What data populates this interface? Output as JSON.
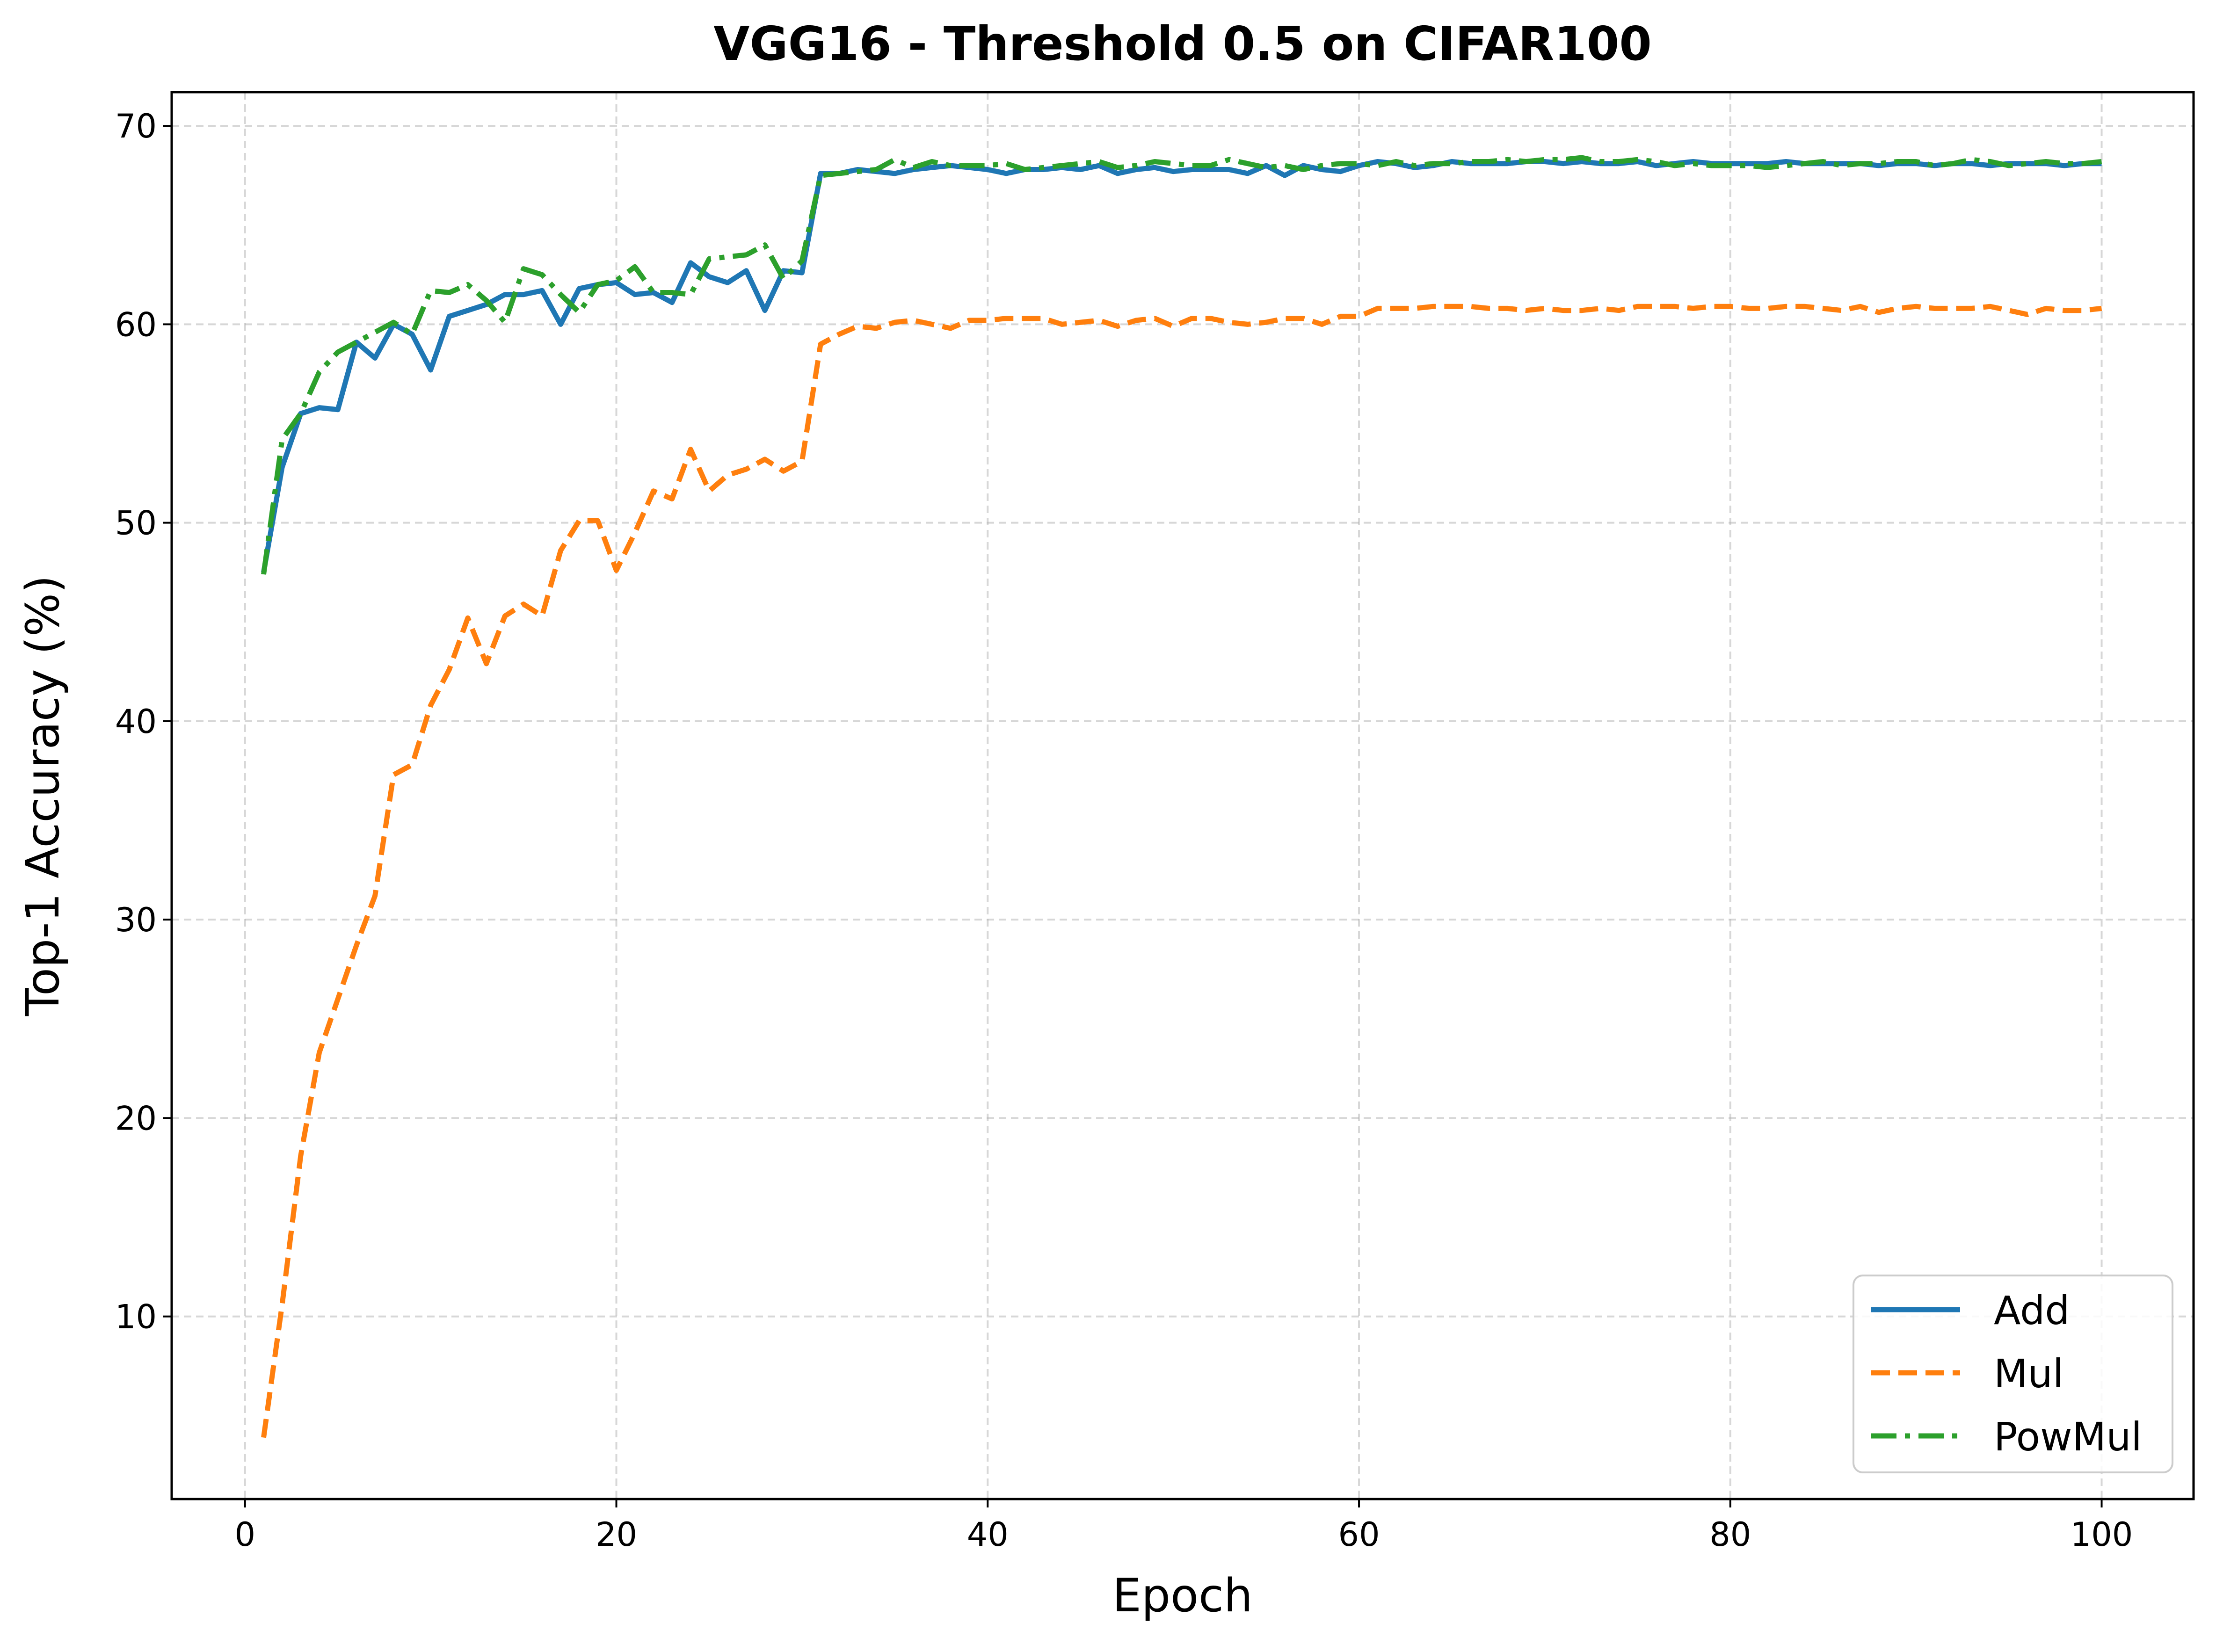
{
  "chart_data": {
    "type": "line",
    "title": "VGG16 - Threshold 0.5 on CIFAR100",
    "xlabel": "Epoch",
    "ylabel": "Top-1 Accuracy (%)",
    "xlim": [
      -3.95,
      104.95
    ],
    "ylim": [
      0.8,
      71.7
    ],
    "xticks": [
      0,
      20,
      40,
      60,
      80,
      100
    ],
    "yticks": [
      10,
      20,
      30,
      40,
      50,
      60,
      70
    ],
    "grid": true,
    "legend_position": "lower-right",
    "series": [
      {
        "name": "Add",
        "color": "#1f77b4",
        "dash": "solid",
        "values": [
          47.5,
          52.8,
          55.5,
          55.8,
          55.7,
          59.1,
          58.3,
          60.0,
          59.5,
          57.7,
          60.4,
          60.7,
          61.0,
          61.5,
          61.5,
          61.7,
          60.0,
          61.8,
          62.0,
          62.1,
          61.5,
          61.6,
          61.1,
          63.1,
          62.4,
          62.1,
          62.7,
          60.7,
          62.7,
          62.6,
          67.6,
          67.6,
          67.8,
          67.7,
          67.6,
          67.8,
          67.9,
          68.0,
          67.9,
          67.8,
          67.6,
          67.8,
          67.8,
          67.9,
          67.8,
          68.0,
          67.6,
          67.8,
          67.9,
          67.7,
          67.8,
          67.8,
          67.8,
          67.6,
          68.0,
          67.5,
          68.0,
          67.8,
          67.7,
          68.0,
          68.2,
          68.1,
          67.9,
          68.0,
          68.2,
          68.1,
          68.1,
          68.1,
          68.2,
          68.2,
          68.1,
          68.2,
          68.1,
          68.1,
          68.2,
          68.0,
          68.1,
          68.2,
          68.1,
          68.1,
          68.1,
          68.1,
          68.2,
          68.1,
          68.1,
          68.1,
          68.1,
          68.0,
          68.1,
          68.1,
          68.0,
          68.1,
          68.1,
          68.0,
          68.1,
          68.1,
          68.1,
          68.0,
          68.1,
          68.1
        ]
      },
      {
        "name": "Mul",
        "color": "#ff7f0e",
        "dash": "dashed",
        "values": [
          3.9,
          10.6,
          18.1,
          23.3,
          26.0,
          28.7,
          31.2,
          37.3,
          37.8,
          40.8,
          42.6,
          45.2,
          42.9,
          45.3,
          45.9,
          45.3,
          48.6,
          50.1,
          50.1,
          47.6,
          49.5,
          51.6,
          51.2,
          53.7,
          51.6,
          52.4,
          52.7,
          53.2,
          52.6,
          53.1,
          59.0,
          59.5,
          59.9,
          59.8,
          60.1,
          60.2,
          60.0,
          59.8,
          60.2,
          60.2,
          60.3,
          60.3,
          60.3,
          60.0,
          60.1,
          60.2,
          59.9,
          60.2,
          60.3,
          59.9,
          60.3,
          60.3,
          60.1,
          60.0,
          60.1,
          60.3,
          60.3,
          60.0,
          60.4,
          60.4,
          60.8,
          60.8,
          60.8,
          60.9,
          60.9,
          60.9,
          60.8,
          60.8,
          60.7,
          60.8,
          60.7,
          60.7,
          60.8,
          60.7,
          60.9,
          60.9,
          60.9,
          60.8,
          60.9,
          60.9,
          60.8,
          60.8,
          60.9,
          60.9,
          60.8,
          60.7,
          60.9,
          60.6,
          60.8,
          60.9,
          60.8,
          60.8,
          60.8,
          60.9,
          60.7,
          60.5,
          60.8,
          60.7,
          60.7,
          60.8
        ]
      },
      {
        "name": "PowMul",
        "color": "#2ca02c",
        "dash": "dashdot",
        "values": [
          47.4,
          54.2,
          55.5,
          57.6,
          58.6,
          59.1,
          59.6,
          60.1,
          59.5,
          61.7,
          61.6,
          62.0,
          61.2,
          60.1,
          62.8,
          62.5,
          61.5,
          60.6,
          62.0,
          62.2,
          62.9,
          61.6,
          61.6,
          61.5,
          63.3,
          63.4,
          63.5,
          64.0,
          62.3,
          63.2,
          67.5,
          67.6,
          67.7,
          67.8,
          68.3,
          67.9,
          68.2,
          68.0,
          68.0,
          68.0,
          68.1,
          67.8,
          67.9,
          68.0,
          68.1,
          68.2,
          67.9,
          68.0,
          68.2,
          68.1,
          68.0,
          68.0,
          68.3,
          68.1,
          67.9,
          68.0,
          67.8,
          68.0,
          68.1,
          68.1,
          68.0,
          68.2,
          68.0,
          68.1,
          68.1,
          68.2,
          68.2,
          68.3,
          68.2,
          68.3,
          68.3,
          68.4,
          68.2,
          68.2,
          68.3,
          68.2,
          68.0,
          68.1,
          68.0,
          68.0,
          68.0,
          67.9,
          68.0,
          68.1,
          68.2,
          68.0,
          68.1,
          68.1,
          68.2,
          68.2,
          68.0,
          68.1,
          68.3,
          68.2,
          68.0,
          68.1,
          68.2,
          68.1,
          68.1,
          68.2
        ]
      }
    ]
  }
}
